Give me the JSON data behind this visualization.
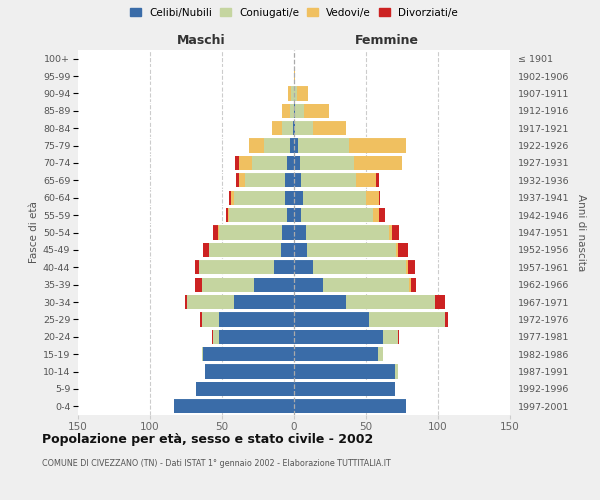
{
  "age_groups": [
    "0-4",
    "5-9",
    "10-14",
    "15-19",
    "20-24",
    "25-29",
    "30-34",
    "35-39",
    "40-44",
    "45-49",
    "50-54",
    "55-59",
    "60-64",
    "65-69",
    "70-74",
    "75-79",
    "80-84",
    "85-89",
    "90-94",
    "95-99",
    "100+"
  ],
  "birth_years": [
    "1997-2001",
    "1992-1996",
    "1987-1991",
    "1982-1986",
    "1977-1981",
    "1972-1976",
    "1967-1971",
    "1962-1966",
    "1957-1961",
    "1952-1956",
    "1947-1951",
    "1942-1946",
    "1937-1941",
    "1932-1936",
    "1927-1931",
    "1922-1926",
    "1917-1921",
    "1912-1916",
    "1907-1911",
    "1902-1906",
    "≤ 1901"
  ],
  "maschi": {
    "celibi": [
      83,
      68,
      62,
      63,
      52,
      52,
      42,
      28,
      14,
      9,
      8,
      5,
      6,
      6,
      5,
      3,
      1,
      0,
      0,
      0,
      0
    ],
    "coniugati": [
      0,
      0,
      0,
      1,
      4,
      12,
      32,
      36,
      52,
      50,
      44,
      40,
      36,
      28,
      24,
      18,
      7,
      3,
      2,
      0,
      0
    ],
    "vedovi": [
      0,
      0,
      0,
      0,
      0,
      0,
      0,
      0,
      0,
      0,
      1,
      1,
      2,
      4,
      9,
      10,
      7,
      5,
      2,
      0,
      0
    ],
    "divorziati": [
      0,
      0,
      0,
      0,
      1,
      1,
      2,
      5,
      3,
      4,
      3,
      1,
      1,
      2,
      3,
      0,
      0,
      0,
      0,
      0,
      0
    ]
  },
  "femmine": {
    "nubili": [
      78,
      70,
      70,
      58,
      62,
      52,
      36,
      20,
      13,
      9,
      8,
      5,
      6,
      5,
      4,
      3,
      1,
      1,
      0,
      0,
      0
    ],
    "coniugate": [
      0,
      0,
      2,
      4,
      10,
      53,
      62,
      60,
      65,
      62,
      58,
      50,
      44,
      38,
      38,
      35,
      12,
      6,
      2,
      0,
      0
    ],
    "vedove": [
      0,
      0,
      0,
      0,
      0,
      0,
      0,
      1,
      1,
      1,
      2,
      4,
      9,
      14,
      33,
      40,
      23,
      17,
      8,
      1,
      0
    ],
    "divorziate": [
      0,
      0,
      0,
      0,
      1,
      2,
      7,
      4,
      5,
      7,
      5,
      4,
      1,
      2,
      0,
      0,
      0,
      0,
      0,
      0,
      0
    ]
  },
  "color_celibi": "#3a6ca8",
  "color_coniugati": "#c5d5a0",
  "color_vedovi": "#f0c060",
  "color_divorziati": "#cc2222",
  "title": "Popolazione per età, sesso e stato civile - 2002",
  "subtitle": "COMUNE DI CIVEZZANO (TN) - Dati ISTAT 1° gennaio 2002 - Elaborazione TUTTITALIA.IT",
  "label_maschi": "Maschi",
  "label_femmine": "Femmine",
  "ylabel_left": "Fasce di età",
  "ylabel_right": "Anni di nascita",
  "xlim": 150,
  "bg_color": "#efefef",
  "plot_bg": "#ffffff",
  "legend_labels": [
    "Celibi/Nubili",
    "Coniugati/e",
    "Vedovi/e",
    "Divorziati/e"
  ]
}
